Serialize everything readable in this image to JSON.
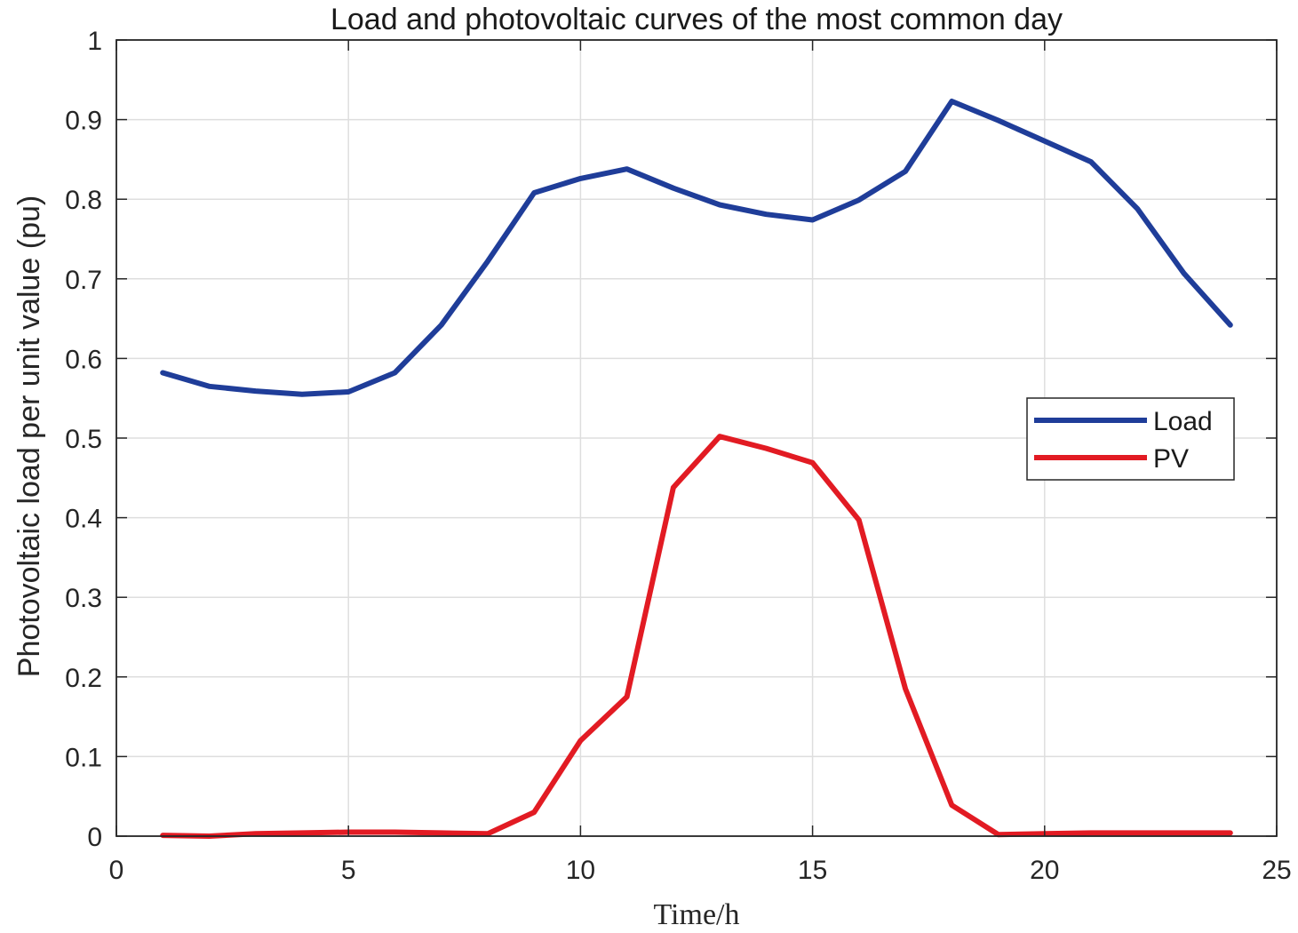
{
  "chart_data": {
    "type": "line",
    "title": "Load and photovoltaic curves of the most common day",
    "xlabel": "Time/h",
    "ylabel": "Photovoltaic load per unit value (pu)",
    "xlim": [
      0,
      25
    ],
    "ylim": [
      0,
      1
    ],
    "xticks": [
      0,
      5,
      10,
      15,
      20,
      25
    ],
    "yticks": [
      0,
      0.1,
      0.2,
      0.3,
      0.4,
      0.5,
      0.6,
      0.7,
      0.8,
      0.9,
      1
    ],
    "xtick_labels": [
      "0",
      "5",
      "10",
      "15",
      "20",
      "25"
    ],
    "ytick_labels": [
      "0",
      "0.1",
      "0.2",
      "0.3",
      "0.4",
      "0.5",
      "0.6",
      "0.7",
      "0.8",
      "0.9",
      "1"
    ],
    "grid": true,
    "legend_position": "right",
    "x": [
      1,
      2,
      3,
      4,
      5,
      6,
      7,
      8,
      9,
      10,
      11,
      12,
      13,
      14,
      15,
      16,
      17,
      18,
      19,
      20,
      21,
      22,
      23,
      24
    ],
    "series": [
      {
        "name": "Load",
        "color": "#1f3d99",
        "values": [
          0.582,
          0.565,
          0.559,
          0.555,
          0.558,
          0.582,
          0.642,
          0.722,
          0.808,
          0.826,
          0.838,
          0.814,
          0.793,
          0.781,
          0.774,
          0.799,
          0.835,
          0.923,
          0.899,
          0.873,
          0.847,
          0.788,
          0.707,
          0.642
        ]
      },
      {
        "name": "PV",
        "color": "#e21b23",
        "values": [
          0.001,
          0.0,
          0.003,
          0.004,
          0.005,
          0.005,
          0.004,
          0.003,
          0.03,
          0.12,
          0.175,
          0.438,
          0.502,
          0.487,
          0.469,
          0.397,
          0.185,
          0.039,
          0.002,
          0.003,
          0.004,
          0.004,
          0.004,
          0.004
        ]
      }
    ]
  }
}
